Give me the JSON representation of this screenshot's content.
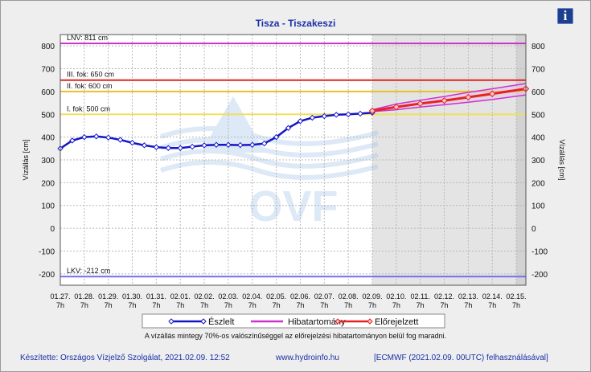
{
  "title": "Tisza - Tiszakeszi",
  "info_icon": "info-icon",
  "footnote": "A vízállás mintegy 70%-os valószínűséggel az előrejelzési hibatartományon belül fog maradni.",
  "footer": {
    "author": "Készítette: Országos Vízjelző Szolgálat, 2021.02.09. 12:52",
    "website": "www.hydroinfo.hu",
    "model": "[ECMWF (2021.02.09. 00UTC) felhasználásával]"
  },
  "watermark": "OVF",
  "chart_data": {
    "type": "line",
    "title": "Tisza - Tiszakeszi",
    "ylabel_left": "Vízállás [cm]",
    "ylabel_right": "Vízállás [cm]",
    "ylim": [
      -250,
      850
    ],
    "yticks": [
      -200,
      -100,
      0,
      100,
      200,
      300,
      400,
      500,
      600,
      700,
      800
    ],
    "x_ticks": [
      {
        "date": "01.27.",
        "hour": "7h"
      },
      {
        "date": "01.28.",
        "hour": "7h"
      },
      {
        "date": "01.29.",
        "hour": "7h"
      },
      {
        "date": "01.30.",
        "hour": "7h"
      },
      {
        "date": "01.31.",
        "hour": "7h"
      },
      {
        "date": "02.01.",
        "hour": "7h"
      },
      {
        "date": "02.02.",
        "hour": "7h"
      },
      {
        "date": "02.03.",
        "hour": "7h"
      },
      {
        "date": "02.04.",
        "hour": "7h"
      },
      {
        "date": "02.05.",
        "hour": "7h"
      },
      {
        "date": "02.06.",
        "hour": "7h"
      },
      {
        "date": "02.07.",
        "hour": "7h"
      },
      {
        "date": "02.08.",
        "hour": "7h"
      },
      {
        "date": "02.09.",
        "hour": "7h"
      },
      {
        "date": "02.10.",
        "hour": "7h"
      },
      {
        "date": "02.11.",
        "hour": "7h"
      },
      {
        "date": "02.12.",
        "hour": "7h"
      },
      {
        "date": "02.13.",
        "hour": "7h"
      },
      {
        "date": "02.14.",
        "hour": "7h"
      },
      {
        "date": "02.15.",
        "hour": "7h"
      }
    ],
    "reference_lines": [
      {
        "label": "LNV: 811 cm",
        "value": 811,
        "color": "#cc33cc"
      },
      {
        "label": "III. fok: 650 cm",
        "value": 650,
        "color": "#e52222"
      },
      {
        "label": "II. fok: 600 cm",
        "value": 600,
        "color": "#e8c020"
      },
      {
        "label": "I. fok: 500 cm",
        "value": 500,
        "color": "#f0e060"
      },
      {
        "label": "LKV: -212 cm",
        "value": -212,
        "color": "#7070ee"
      }
    ],
    "forecast_start": "02.09. 7h",
    "series": [
      {
        "name": "Észlelt",
        "color": "#1515c8",
        "x": [
          0,
          0.5,
          1,
          1.5,
          2,
          2.5,
          3,
          3.5,
          4,
          4.5,
          5,
          5.5,
          6,
          6.5,
          7,
          7.5,
          8,
          8.5,
          9,
          9.5,
          10,
          10.5,
          11,
          11.5,
          12,
          12.5,
          13
        ],
        "values": [
          350,
          385,
          400,
          403,
          398,
          388,
          375,
          364,
          356,
          352,
          352,
          358,
          364,
          366,
          366,
          365,
          366,
          372,
          400,
          440,
          470,
          485,
          492,
          498,
          500,
          503,
          507
        ]
      },
      {
        "name": "Hibatartomány",
        "color": "#cc33cc",
        "x": [
          13,
          14,
          15,
          16,
          17,
          18,
          19.4
        ],
        "upper": [
          520,
          545,
          562,
          578,
          596,
          612,
          635
        ],
        "lower": [
          512,
          520,
          532,
          542,
          553,
          565,
          585
        ]
      },
      {
        "name": "Előrejelzett",
        "color": "#e52222",
        "x": [
          13,
          14,
          15,
          16,
          17,
          18,
          19.4
        ],
        "values": [
          515,
          532,
          547,
          560,
          575,
          590,
          612
        ]
      }
    ],
    "legend": [
      "Észlelt",
      "Hibatartomány",
      "Előrejelzett"
    ],
    "legend_placement": "bottom"
  }
}
